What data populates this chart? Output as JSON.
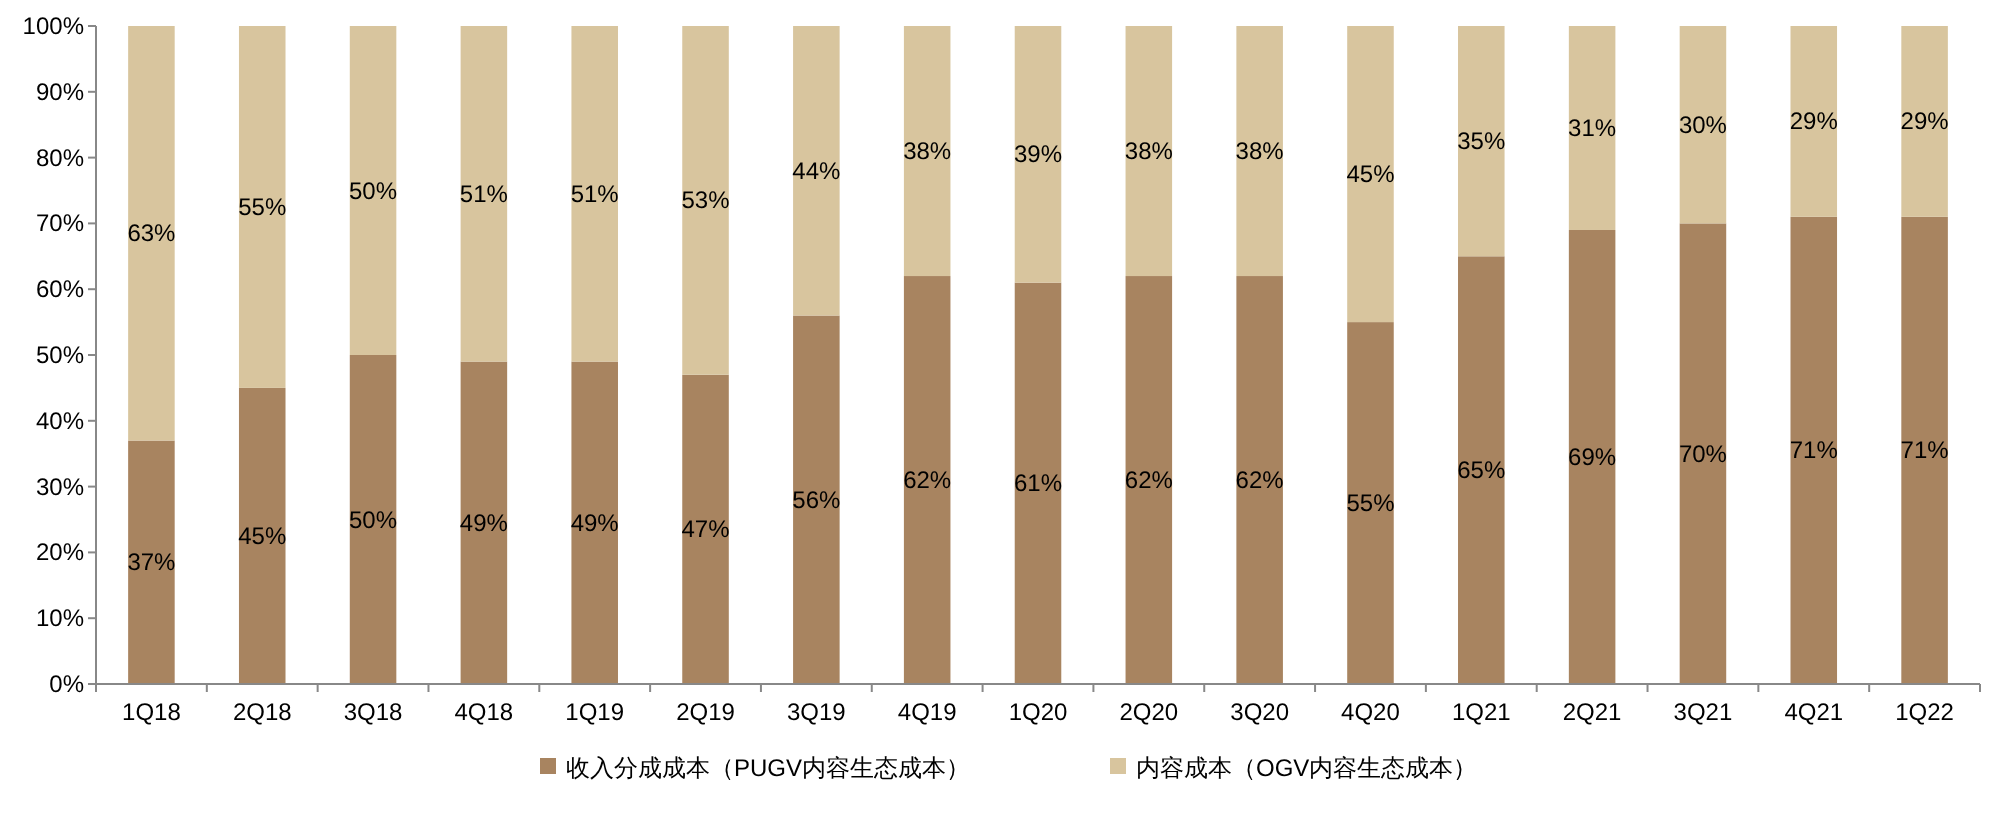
{
  "chart_data": {
    "type": "bar",
    "stacked": true,
    "legend": "bottom",
    "categories": [
      "1Q18",
      "2Q18",
      "3Q18",
      "4Q18",
      "1Q19",
      "2Q19",
      "3Q19",
      "4Q19",
      "1Q20",
      "2Q20",
      "3Q20",
      "4Q20",
      "1Q21",
      "2Q21",
      "3Q21",
      "4Q21",
      "1Q22"
    ],
    "series": [
      {
        "name": "收入分成成本（PUGV内容生态成本）",
        "color": "#a88460",
        "values": [
          37,
          45,
          50,
          49,
          49,
          47,
          56,
          62,
          61,
          62,
          62,
          55,
          65,
          69,
          70,
          71,
          71
        ],
        "value_labels": [
          "37%",
          "45%",
          "50%",
          "49%",
          "49%",
          "47%",
          "56%",
          "62%",
          "61%",
          "62%",
          "62%",
          "55%",
          "65%",
          "69%",
          "70%",
          "71%",
          "71%"
        ]
      },
      {
        "name": "内容成本（OGV内容生态成本）",
        "color": "#d8c59e",
        "values": [
          63,
          55,
          50,
          51,
          51,
          53,
          44,
          38,
          39,
          38,
          38,
          45,
          35,
          31,
          30,
          29,
          29
        ],
        "value_labels": [
          "63%",
          "55%",
          "50%",
          "51%",
          "51%",
          "53%",
          "44%",
          "38%",
          "39%",
          "38%",
          "38%",
          "45%",
          "35%",
          "31%",
          "30%",
          "29%",
          "29%"
        ]
      }
    ],
    "ylim": [
      0,
      100
    ],
    "yticks": [
      {
        "value": 0,
        "label": "0%"
      },
      {
        "value": 10,
        "label": "10%"
      },
      {
        "value": 20,
        "label": "20%"
      },
      {
        "value": 30,
        "label": "30%"
      },
      {
        "value": 40,
        "label": "40%"
      },
      {
        "value": 50,
        "label": "50%"
      },
      {
        "value": 60,
        "label": "60%"
      },
      {
        "value": 70,
        "label": "70%"
      },
      {
        "value": 80,
        "label": "80%"
      },
      {
        "value": 90,
        "label": "90%"
      },
      {
        "value": 100,
        "label": "100%"
      }
    ]
  }
}
